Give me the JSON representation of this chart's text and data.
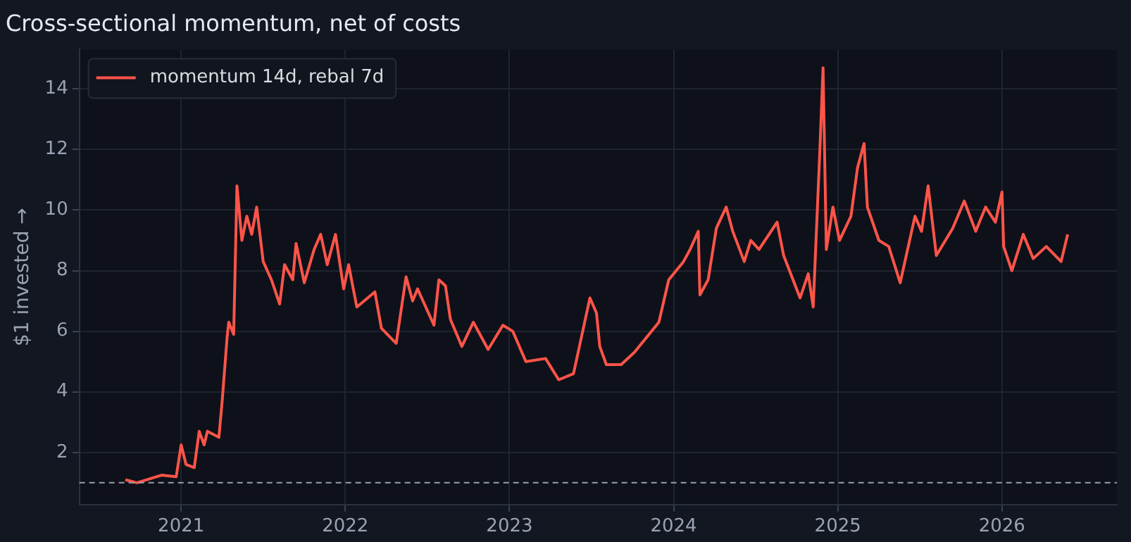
{
  "chart_data": {
    "type": "line",
    "title": "Cross-sectional momentum, net of costs",
    "ylabel": "$1 invested →",
    "series": [
      {
        "name": "momentum 14d, rebal 7d",
        "color": "#ff5449",
        "x": [
          2020.66,
          2020.73,
          2020.88,
          2020.97,
          2021.0,
          2021.03,
          2021.08,
          2021.11,
          2021.14,
          2021.16,
          2021.23,
          2021.25,
          2021.28,
          2021.29,
          2021.32,
          2021.34,
          2021.37,
          2021.4,
          2021.43,
          2021.46,
          2021.5,
          2021.55,
          2021.6,
          2021.63,
          2021.68,
          2021.7,
          2021.75,
          2021.81,
          2021.85,
          2021.89,
          2021.94,
          2021.99,
          2022.02,
          2022.07,
          2022.18,
          2022.22,
          2022.31,
          2022.37,
          2022.41,
          2022.44,
          2022.54,
          2022.57,
          2022.61,
          2022.64,
          2022.71,
          2022.78,
          2022.87,
          2022.96,
          2023.02,
          2023.1,
          2023.22,
          2023.3,
          2023.39,
          2023.43,
          2023.49,
          2023.53,
          2023.55,
          2023.59,
          2023.68,
          2023.76,
          2023.85,
          2023.91,
          2023.97,
          2024.06,
          2024.1,
          2024.15,
          2024.16,
          2024.21,
          2024.26,
          2024.32,
          2024.36,
          2024.43,
          2024.47,
          2024.52,
          2024.63,
          2024.67,
          2024.77,
          2024.82,
          2024.85,
          2024.89,
          2024.91,
          2024.93,
          2024.97,
          2025.01,
          2025.08,
          2025.12,
          2025.16,
          2025.18,
          2025.25,
          2025.31,
          2025.38,
          2025.47,
          2025.51,
          2025.55,
          2025.6,
          2025.7,
          2025.77,
          2025.84,
          2025.9,
          2025.96,
          2026.0,
          2026.01,
          2026.06,
          2026.13,
          2026.19,
          2026.27,
          2026.36,
          2026.4
        ],
        "values": [
          1.1,
          1.0,
          1.25,
          1.2,
          2.25,
          1.6,
          1.5,
          2.7,
          2.25,
          2.7,
          2.5,
          3.7,
          5.8,
          6.3,
          5.9,
          10.8,
          9.0,
          9.8,
          9.2,
          10.1,
          8.3,
          7.7,
          6.9,
          8.2,
          7.7,
          8.9,
          7.6,
          8.7,
          9.2,
          8.2,
          9.2,
          7.4,
          8.2,
          6.8,
          7.3,
          6.1,
          5.6,
          7.8,
          7.0,
          7.4,
          6.2,
          7.7,
          7.5,
          6.4,
          5.5,
          6.3,
          5.4,
          6.2,
          6.0,
          5.0,
          5.1,
          4.4,
          4.6,
          5.6,
          7.1,
          6.6,
          5.5,
          4.9,
          4.9,
          5.3,
          5.9,
          6.3,
          7.7,
          8.3,
          8.7,
          9.3,
          7.2,
          7.7,
          9.4,
          10.1,
          9.3,
          8.3,
          9.0,
          8.7,
          9.6,
          8.5,
          7.1,
          7.9,
          6.8,
          11.9,
          14.7,
          8.7,
          10.1,
          9.0,
          9.8,
          11.4,
          12.2,
          10.1,
          9.0,
          8.8,
          7.6,
          9.8,
          9.3,
          10.8,
          8.5,
          9.4,
          10.3,
          9.3,
          10.1,
          9.6,
          10.6,
          8.8,
          8.0,
          9.2,
          8.4,
          8.8,
          8.3,
          9.2
        ]
      }
    ],
    "xlim": [
      2020.38,
      2026.7
    ],
    "xticks": [
      2021,
      2022,
      2023,
      2024,
      2025,
      2026
    ],
    "ylim": [
      0.28,
      15.3
    ],
    "yticks": [
      2,
      4,
      6,
      8,
      10,
      12,
      14
    ],
    "ref_lines": [
      {
        "axis": "y",
        "value": 1,
        "color": "#9aa0a6",
        "line_style": "dashed"
      }
    ],
    "grid": true,
    "legend": "top left",
    "marker": "none",
    "line_style": "solid"
  }
}
